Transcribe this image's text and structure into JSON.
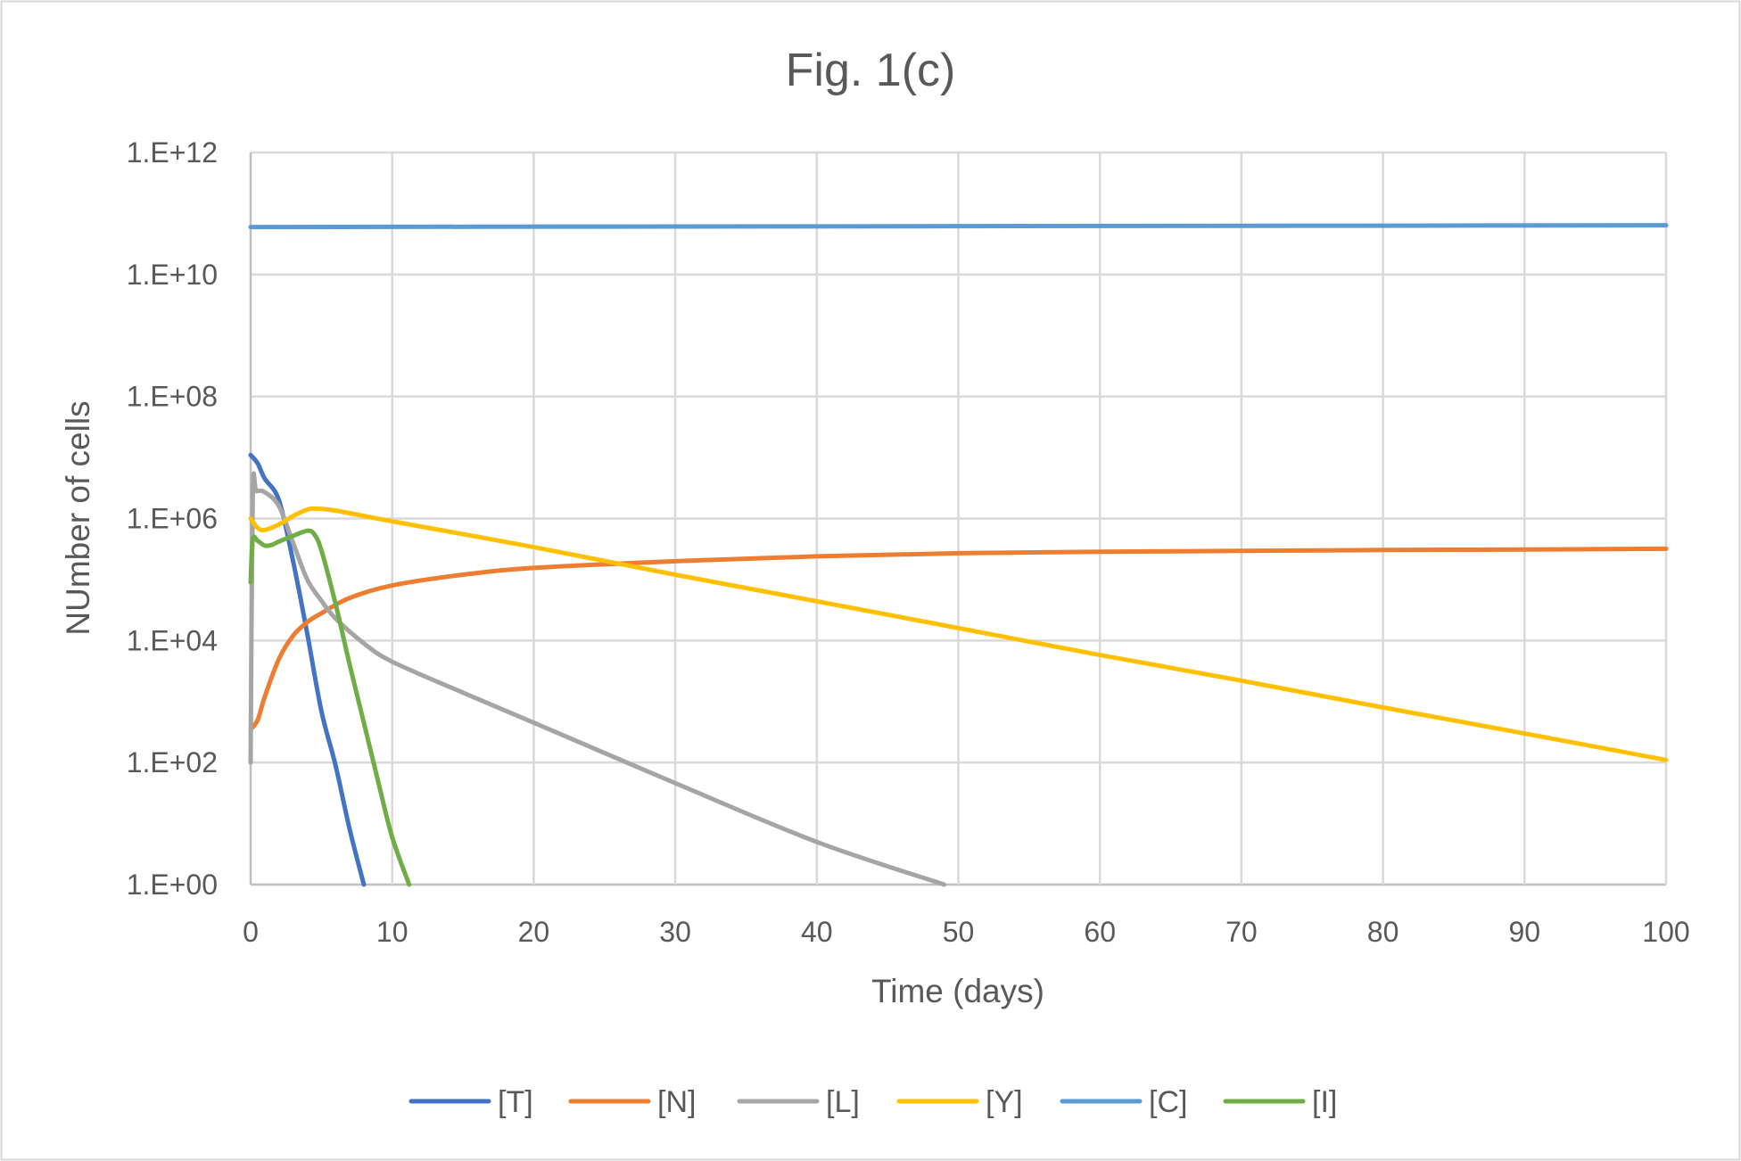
{
  "chart_data": {
    "type": "line",
    "title": "Fig. 1(c)",
    "xlabel": "Time (days)",
    "ylabel": "NUmber of cells",
    "xlim": [
      0,
      100
    ],
    "ylim": [
      1,
      1000000000000.0
    ],
    "yscale": "log",
    "grid": true,
    "legend_position": "bottom",
    "x_ticks": [
      "0",
      "10",
      "20",
      "30",
      "40",
      "50",
      "60",
      "70",
      "80",
      "90",
      "100"
    ],
    "y_ticks": [
      "1.E+00",
      "1.E+02",
      "1.E+04",
      "1.E+06",
      "1.E+08",
      "1.E+10",
      "1.E+12"
    ],
    "series": [
      {
        "name": "[T]",
        "color": "#4472C4",
        "x": [
          0,
          0.5,
          1,
          2,
          3,
          4,
          5,
          6,
          7,
          8
        ],
        "y": [
          11000000.0,
          8000000.0,
          4500000.0,
          2000000.0,
          200000.0,
          13000.0,
          700.0,
          90.0,
          8,
          1
        ]
      },
      {
        "name": "[N]",
        "color": "#ED7D31",
        "x": [
          0,
          0.5,
          1,
          2,
          3,
          4,
          5,
          7,
          10,
          15,
          20,
          30,
          40,
          50,
          60,
          70,
          80,
          90,
          100
        ],
        "y": [
          350,
          500,
          1200,
          5000,
          12000.0,
          20000.0,
          28000.0,
          50000.0,
          80000.0,
          120000.0,
          155000.0,
          200000.0,
          240000.0,
          270000.0,
          285000.0,
          295000.0,
          305000.0,
          310000.0,
          320000.0
        ]
      },
      {
        "name": "[L]",
        "color": "#A5A5A5",
        "x": [
          0,
          0.15,
          0.4,
          1,
          2,
          3,
          4,
          5,
          6,
          8,
          10,
          15,
          20,
          30,
          40,
          49
        ],
        "y": [
          100,
          2500000.0,
          2800000.0,
          2700000.0,
          1600000.0,
          400000.0,
          100000.0,
          45000.0,
          23000.0,
          9000.0,
          4500.0,
          1400.0,
          450.0,
          46.0,
          5,
          1
        ]
      },
      {
        "name": "[Y]",
        "color": "#FFC000",
        "x": [
          0,
          0.5,
          1,
          2,
          3,
          4,
          4.5,
          6,
          10,
          20,
          30,
          40,
          50,
          60,
          70,
          80,
          90,
          100
        ],
        "y": [
          1000000.0,
          700000.0,
          650000.0,
          800000.0,
          1100000.0,
          1400000.0,
          1450000.0,
          1350000.0,
          900000.0,
          340000.0,
          120000.0,
          44000.0,
          16000.0,
          5800.0,
          2200.0,
          800.0,
          300.0,
          110.0
        ]
      },
      {
        "name": "[C]",
        "color": "#5B9BD5",
        "x": [
          0,
          25,
          50,
          75,
          100
        ],
        "y": [
          60000000000.0,
          61000000000.0,
          62000000000.0,
          63000000000.0,
          64000000000.0
        ]
      },
      {
        "name": "[I]",
        "color": "#70AD47",
        "x": [
          0,
          0.15,
          0.5,
          1,
          1.5,
          2,
          3,
          4,
          4.5,
          5,
          6,
          7,
          8,
          9,
          10,
          11.2
        ],
        "y": [
          90000.0,
          450000.0,
          430000.0,
          360000.0,
          370000.0,
          420000.0,
          520000.0,
          630000.0,
          550000.0,
          300000.0,
          40000.0,
          4000.0,
          450.0,
          50.0,
          6,
          1
        ]
      }
    ]
  }
}
